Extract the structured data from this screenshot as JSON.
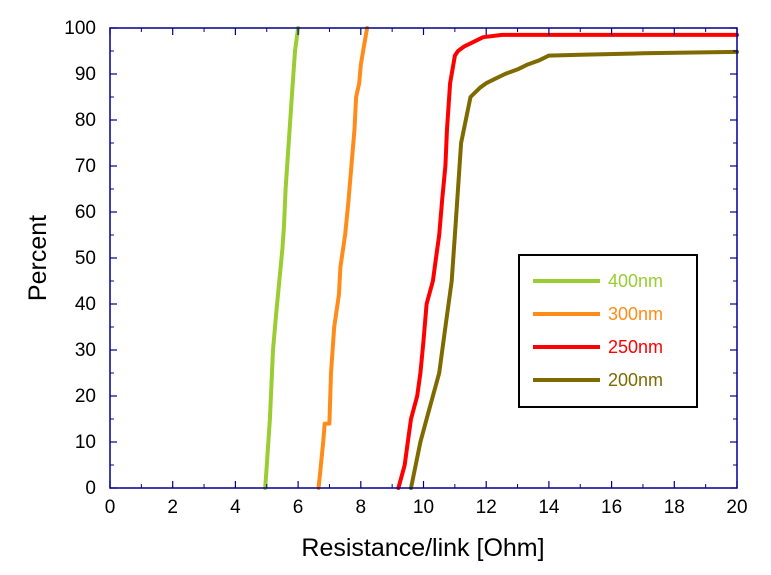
{
  "chart_data": {
    "type": "line",
    "title": "",
    "xlabel": "Resistance/link [Ohm]",
    "ylabel": "Percent",
    "xlim": [
      0,
      20
    ],
    "ylim": [
      0,
      100
    ],
    "xticks": [
      0,
      2,
      4,
      6,
      8,
      10,
      12,
      14,
      16,
      18,
      20
    ],
    "yticks": [
      0,
      10,
      20,
      30,
      40,
      50,
      60,
      70,
      80,
      90,
      100
    ],
    "grid": false,
    "legend_position": "center-right",
    "colors": {
      "400nm": "#9ACD32",
      "300nm": "#FF8C1A",
      "250nm": "#FF0000",
      "200nm": "#7F6A00",
      "axis": "#00008B"
    },
    "series": [
      {
        "name": "400nm",
        "x": [
          4.95,
          5.0,
          5.1,
          5.2,
          5.3,
          5.4,
          5.5,
          5.55,
          5.6,
          5.7,
          5.8,
          5.85,
          5.9,
          6.0
        ],
        "y": [
          0,
          5,
          15,
          30,
          38,
          45,
          52,
          57,
          65,
          75,
          85,
          90,
          95,
          100
        ]
      },
      {
        "name": "300nm",
        "x": [
          6.65,
          6.7,
          6.8,
          6.85,
          7.0,
          7.05,
          7.15,
          7.3,
          7.35,
          7.5,
          7.6,
          7.7,
          7.8,
          7.85,
          7.95,
          8.0,
          8.1,
          8.2
        ],
        "y": [
          0,
          3,
          10,
          14,
          14,
          25,
          35,
          42,
          48,
          55,
          62,
          70,
          78,
          85,
          88,
          92,
          96,
          100
        ]
      },
      {
        "name": "250nm",
        "x": [
          9.2,
          9.4,
          9.5,
          9.6,
          9.8,
          9.9,
          10.0,
          10.1,
          10.3,
          10.4,
          10.5,
          10.6,
          10.7,
          10.75,
          10.85,
          11.0,
          11.1,
          11.3,
          11.6,
          11.9,
          12.5,
          14.0,
          17.0,
          20.0
        ],
        "y": [
          0,
          5,
          10,
          15,
          20,
          25,
          32,
          40,
          45,
          50,
          55,
          63,
          70,
          78,
          88,
          94,
          95,
          96,
          97,
          98,
          98.5,
          98.5,
          98.5,
          98.5
        ]
      },
      {
        "name": "200nm",
        "x": [
          9.6,
          9.75,
          9.9,
          10.1,
          10.3,
          10.5,
          10.7,
          10.9,
          11.0,
          11.1,
          11.2,
          11.5,
          11.8,
          12.0,
          12.3,
          12.6,
          13.0,
          13.3,
          13.7,
          14.0,
          15.0,
          17.0,
          20.0
        ],
        "y": [
          0,
          5,
          10,
          15,
          20,
          25,
          35,
          45,
          55,
          65,
          75,
          85,
          87,
          88,
          89,
          90,
          91,
          92,
          93,
          94,
          94.2,
          94.5,
          94.8
        ]
      }
    ]
  }
}
